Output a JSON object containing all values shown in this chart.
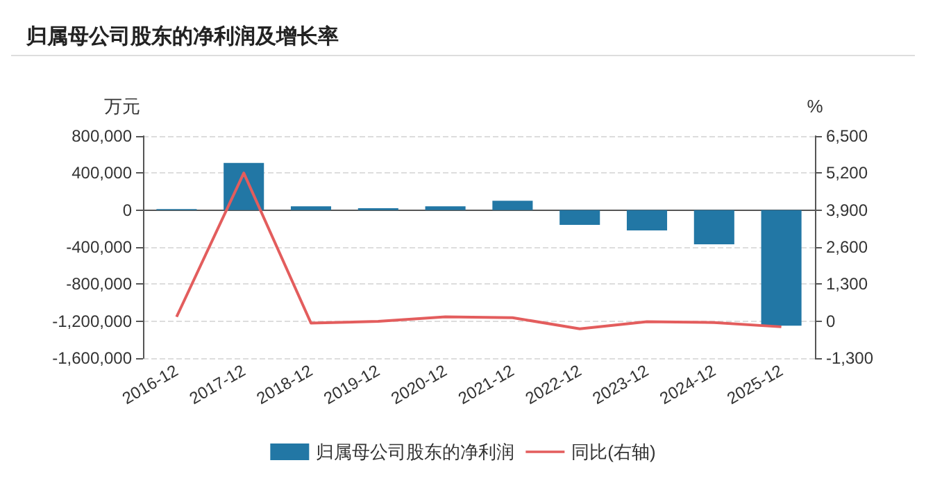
{
  "chart_data": {
    "type": "bar",
    "title": "归属母公司股东的净利润及增长率",
    "ylabel": "万元",
    "y2label": "%",
    "categories": [
      "2016-12",
      "2017-12",
      "2018-12",
      "2019-12",
      "2020-12",
      "2021-12",
      "2022-12",
      "2023-12",
      "2024-12",
      "2025-12"
    ],
    "series": [
      {
        "name": "归属母公司股东的净利润",
        "color": "#2277a5",
        "values": [
          10000,
          510000,
          40000,
          20000,
          40000,
          100000,
          -160000,
          -220000,
          -370000,
          -1250000
        ]
      },
      {
        "name": "同比(右轴)",
        "type": "line",
        "axis": "y2",
        "color": "#e35d5d",
        "values": [
          150,
          5200,
          -70,
          -10,
          150,
          120,
          -270,
          -20,
          -50,
          -200
        ]
      }
    ],
    "ylim": [
      -1600000,
      800000
    ],
    "yticks": [
      {
        "value": -1600000,
        "label": "-1,600,000"
      },
      {
        "value": -1200000,
        "label": "-1,200,000"
      },
      {
        "value": -800000,
        "label": "-800,000"
      },
      {
        "value": -400000,
        "label": "-400,000"
      },
      0,
      {
        "value": 400000,
        "label": "400,000"
      },
      {
        "value": 800000,
        "label": "800,000"
      }
    ],
    "y2lim": [
      -1300,
      6500
    ],
    "y2ticks": [
      {
        "value": -1300,
        "label": "-1,300"
      },
      0,
      {
        "value": 1300,
        "label": "1,300"
      },
      {
        "value": 2600,
        "label": "2,600"
      },
      {
        "value": 3900,
        "label": "3,900"
      },
      {
        "value": 5200,
        "label": "5,200"
      },
      {
        "value": 6500,
        "label": "6,500"
      }
    ],
    "grid": "y",
    "legend": "bottom",
    "marker": "none",
    "line_style": "solid"
  }
}
